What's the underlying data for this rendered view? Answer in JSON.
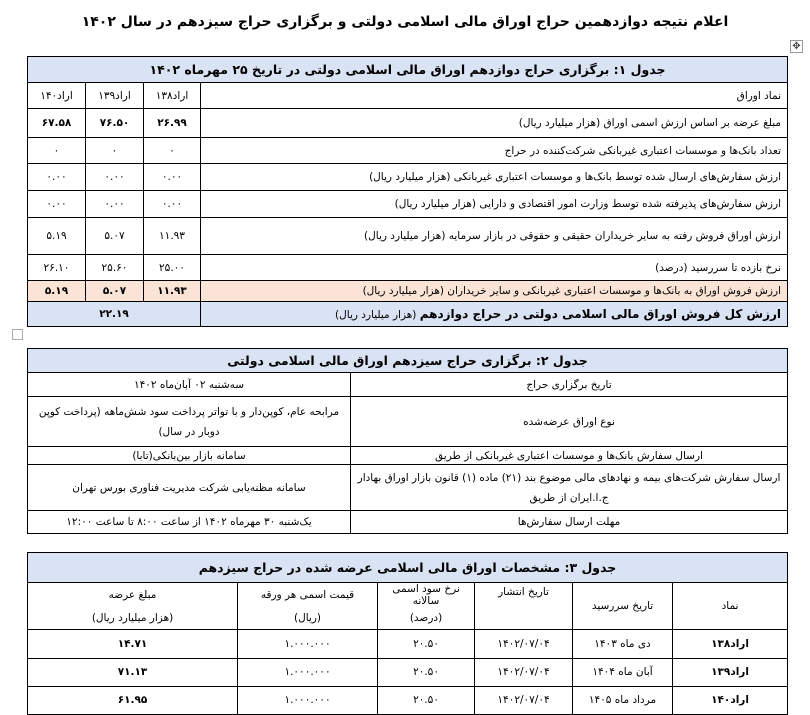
{
  "document": {
    "title": "اعلام نتیجه دوازدهمین حراج اوراق مالی اسلامی دولتی و برگزاری حراج سیزدهم در سال ۱۴۰۲"
  },
  "table1": {
    "title": "جدول ۱: برگزاری حراج دوازدهم اوراق مالی اسلامی دولتی در تاریخ ۲۵ مهرماه ۱۴۰۲",
    "header": {
      "label": "نماد اوراق",
      "cols": [
        "اراد۱۳۸",
        "اراد۱۳۹",
        "اراد۱۴۰"
      ]
    },
    "rows": [
      {
        "label": "مبلغ عرضه بر اساس ارزش اسمی اوراق (هزار میلیارد ریال)",
        "values": [
          "۲۶.۹۹",
          "۷۶.۵۰",
          "۶۷.۵۸"
        ]
      },
      {
        "label": "تعداد بانک‌ها و موسسات اعتباری غیربانکی شرکت‌کننده در حراج",
        "values": [
          "۰",
          "۰",
          "۰"
        ]
      },
      {
        "label": "ارزش سفارش‌های ارسال شده توسط بانک‌ها و موسسات اعتباری غیربانکی (هزار میلیارد ریال)",
        "values": [
          "۰.۰۰",
          "۰.۰۰",
          "۰.۰۰"
        ]
      },
      {
        "label": "ارزش سفارش‌های پذیرفته شده توسط وزارت امور اقتصادی و دارایی (هزار میلیارد ریال)",
        "values": [
          "۰.۰۰",
          "۰.۰۰",
          "۰.۰۰"
        ]
      },
      {
        "label": "ارزش اوراق فروش رفته به سایر خریداران حقیقی و حقوقی در بازار سرمایه (هزار میلیارد ریال)",
        "values": [
          "۱۱.۹۳",
          "۵.۰۷",
          "۵.۱۹"
        ]
      },
      {
        "label": "نرخ بازده تا سررسید (درصد)",
        "values": [
          "۲۵.۰۰",
          "۲۵.۶۰",
          "۲۶.۱۰"
        ]
      },
      {
        "label": "ارزش فروش اوراق به بانک‌ها و موسسات اعتباری غیربانکی و سایر خریداران (هزار میلیارد ریال)",
        "values": [
          "۱۱.۹۳",
          "۵.۰۷",
          "۵.۱۹"
        ]
      }
    ],
    "total": {
      "label_bold": "ارزش کل فروش اوراق مالی اسلامی دولتی در حراج دوازدهم",
      "label_unit": "(هزار میلیارد ریال)",
      "value": "۲۲.۱۹"
    }
  },
  "table2": {
    "title": "جدول ۲: برگزاری حراج سیزدهم اوراق مالی اسلامی دولتی",
    "rows": [
      {
        "label": "تاریخ برگزاری حراج",
        "value": "سه‌شنبه ۰۲ آبان‌ماه ۱۴۰۲"
      },
      {
        "label": "نوع اوراق عرضه‌شده",
        "value": "مرابحه عام، کوپن‌دار و با تواتر پرداخت سود شش‌ماهه (پرداخت کوپن دوبار در سال)"
      },
      {
        "label": "ارسال سفارش بانک‌ها و موسسات اعتباری غیربانکی از طریق",
        "value": "سامانه بازار بین‌بانکی(تابا)"
      },
      {
        "label": "ارسال سفارش شرکت‌های بیمه و نهادهای مالی موضوع بند (۲۱) ماده (۱) قانون بازار اوراق بهادار ج.ا.ایران از طریق",
        "value": "سامانه مظنه‌یابی شرکت مدیریت فناوری بورس تهران"
      },
      {
        "label": "مهلت ارسال سفارش‌ها",
        "value": "یک‌شنبه ۳۰ مهرماه ۱۴۰۲ از ساعت ۸:۰۰ تا ساعت ۱۲:۰۰"
      }
    ]
  },
  "table3": {
    "title": "جدول ۳: مشخصات اوراق مالی اسلامی عرضه شده در حراج سیزدهم",
    "headers": {
      "symbol": "نماد",
      "maturity": "تاریخ سررسید",
      "issue": "تاریخ انتشار",
      "rate": "نرخ سود اسمی سالانه",
      "rate_unit": "(درصد)",
      "face": "قیمت اسمی هر ورقه",
      "face_unit": "(ریال)",
      "amount": "مبلغ عرضه",
      "amount_unit": "(هزار میلیارد ریال)"
    },
    "rows": [
      {
        "symbol": "اراد۱۳۸",
        "maturity": "دی ماه ۱۴۰۳",
        "issue": "۱۴۰۲/۰۷/۰۴",
        "rate": "۲۰.۵۰",
        "face": "۱.۰۰۰.۰۰۰",
        "amount": "۱۴.۷۱"
      },
      {
        "symbol": "اراد۱۳۹",
        "maturity": "آبان ماه ۱۴۰۴",
        "issue": "۱۴۰۲/۰۷/۰۴",
        "rate": "۲۰.۵۰",
        "face": "۱.۰۰۰.۰۰۰",
        "amount": "۷۱.۱۳"
      },
      {
        "symbol": "اراد۱۴۰",
        "maturity": "مرداد ماه ۱۴۰۵",
        "issue": "۱۴۰۲/۰۷/۰۴",
        "rate": "۲۰.۵۰",
        "face": "۱.۰۰۰.۰۰۰",
        "amount": "۶۱.۹۵"
      }
    ]
  },
  "colors": {
    "header_blue": "#dae3f3",
    "highlight_peach": "#fbe4d5"
  }
}
